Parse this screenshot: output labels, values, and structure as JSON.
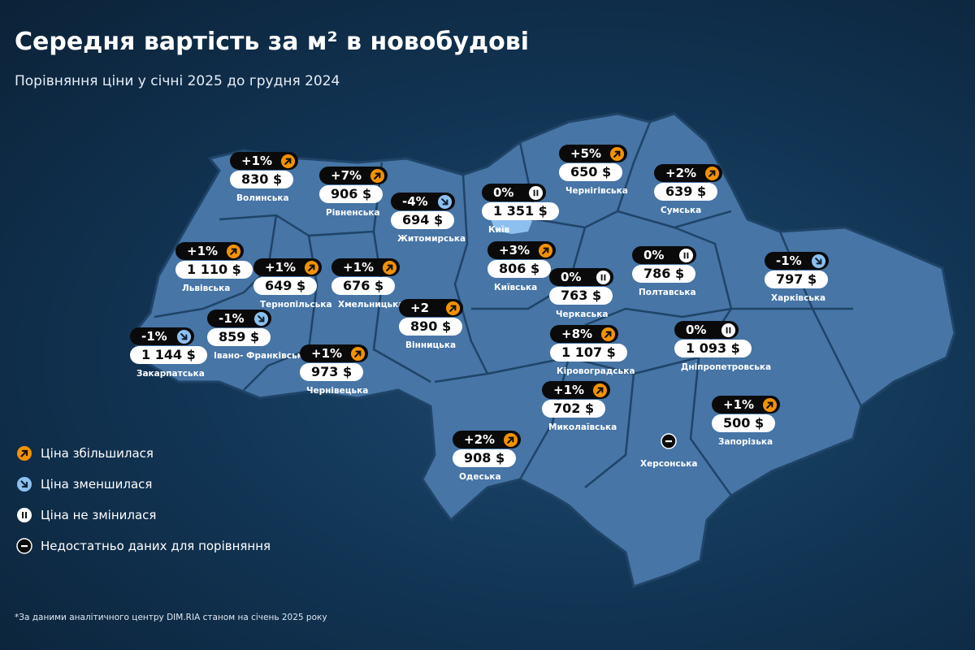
{
  "header": {
    "title": "Середня вартість за м² в новобудові",
    "subtitle": "Порівняння ціни у січні 2025 до грудня 2024"
  },
  "regions": [
    {
      "name": "Волинська",
      "change": "+1%",
      "price": "830 $",
      "status": "up"
    },
    {
      "name": "Рівненська",
      "change": "+7%",
      "price": "906 $",
      "status": "up"
    },
    {
      "name": "Житомирська",
      "change": "-4%",
      "price": "694 $",
      "status": "down"
    },
    {
      "name": "Київ",
      "change": "0%",
      "price": "1 351 $",
      "status": "same"
    },
    {
      "name": "Чернігівська",
      "change": "+5%",
      "price": "650 $",
      "status": "up"
    },
    {
      "name": "Сумська",
      "change": "+2%",
      "price": "639 $",
      "status": "up"
    },
    {
      "name": "Львівська",
      "change": "+1%",
      "price": "1 110 $",
      "status": "up"
    },
    {
      "name": "Тернопільська",
      "change": "+1%",
      "price": "649 $",
      "status": "up"
    },
    {
      "name": "Хмельницька",
      "change": "+1%",
      "price": "676 $",
      "status": "up"
    },
    {
      "name": "Київська",
      "change": "+3%",
      "price": "806 $",
      "status": "up"
    },
    {
      "name": "Полтавська",
      "change": "0%",
      "price": "786 $",
      "status": "same"
    },
    {
      "name": "Харківська",
      "change": "-1%",
      "price": "797 $",
      "status": "down"
    },
    {
      "name": "Черкаська",
      "change": "0%",
      "price": "763 $",
      "status": "same"
    },
    {
      "name": "Івано- Франківська",
      "change": "-1%",
      "price": "859 $",
      "status": "down"
    },
    {
      "name": "Вінницька",
      "change": "+2",
      "price": "890 $",
      "status": "up"
    },
    {
      "name": "Закарпатська",
      "change": "-1%",
      "price": "1 144 $",
      "status": "down"
    },
    {
      "name": "Чернівецька",
      "change": "+1%",
      "price": "973 $",
      "status": "up"
    },
    {
      "name": "Кіровоградська",
      "change": "+8%",
      "price": "1 107 $",
      "status": "up"
    },
    {
      "name": "Дніпропетровська",
      "change": "0%",
      "price": "1 093 $",
      "status": "same"
    },
    {
      "name": "Миколаївська",
      "change": "+1%",
      "price": "702 $",
      "status": "up"
    },
    {
      "name": "Запорізька",
      "change": "+1%",
      "price": "500 $",
      "status": "up"
    },
    {
      "name": "Одеська",
      "change": "+2%",
      "price": "908 $",
      "status": "up"
    },
    {
      "name": "Херсонська",
      "status": "none"
    }
  ],
  "legend": [
    {
      "label": "Ціна збільшилася",
      "status": "up"
    },
    {
      "label": "Ціна зменшилася",
      "status": "down"
    },
    {
      "label": "Ціна не змінилася",
      "status": "same"
    },
    {
      "label": "Недостатньо даних для порівняння",
      "status": "none"
    }
  ],
  "footnote": "*За даними аналітичного центру DIM.RIA станом на січень 2025 року"
}
